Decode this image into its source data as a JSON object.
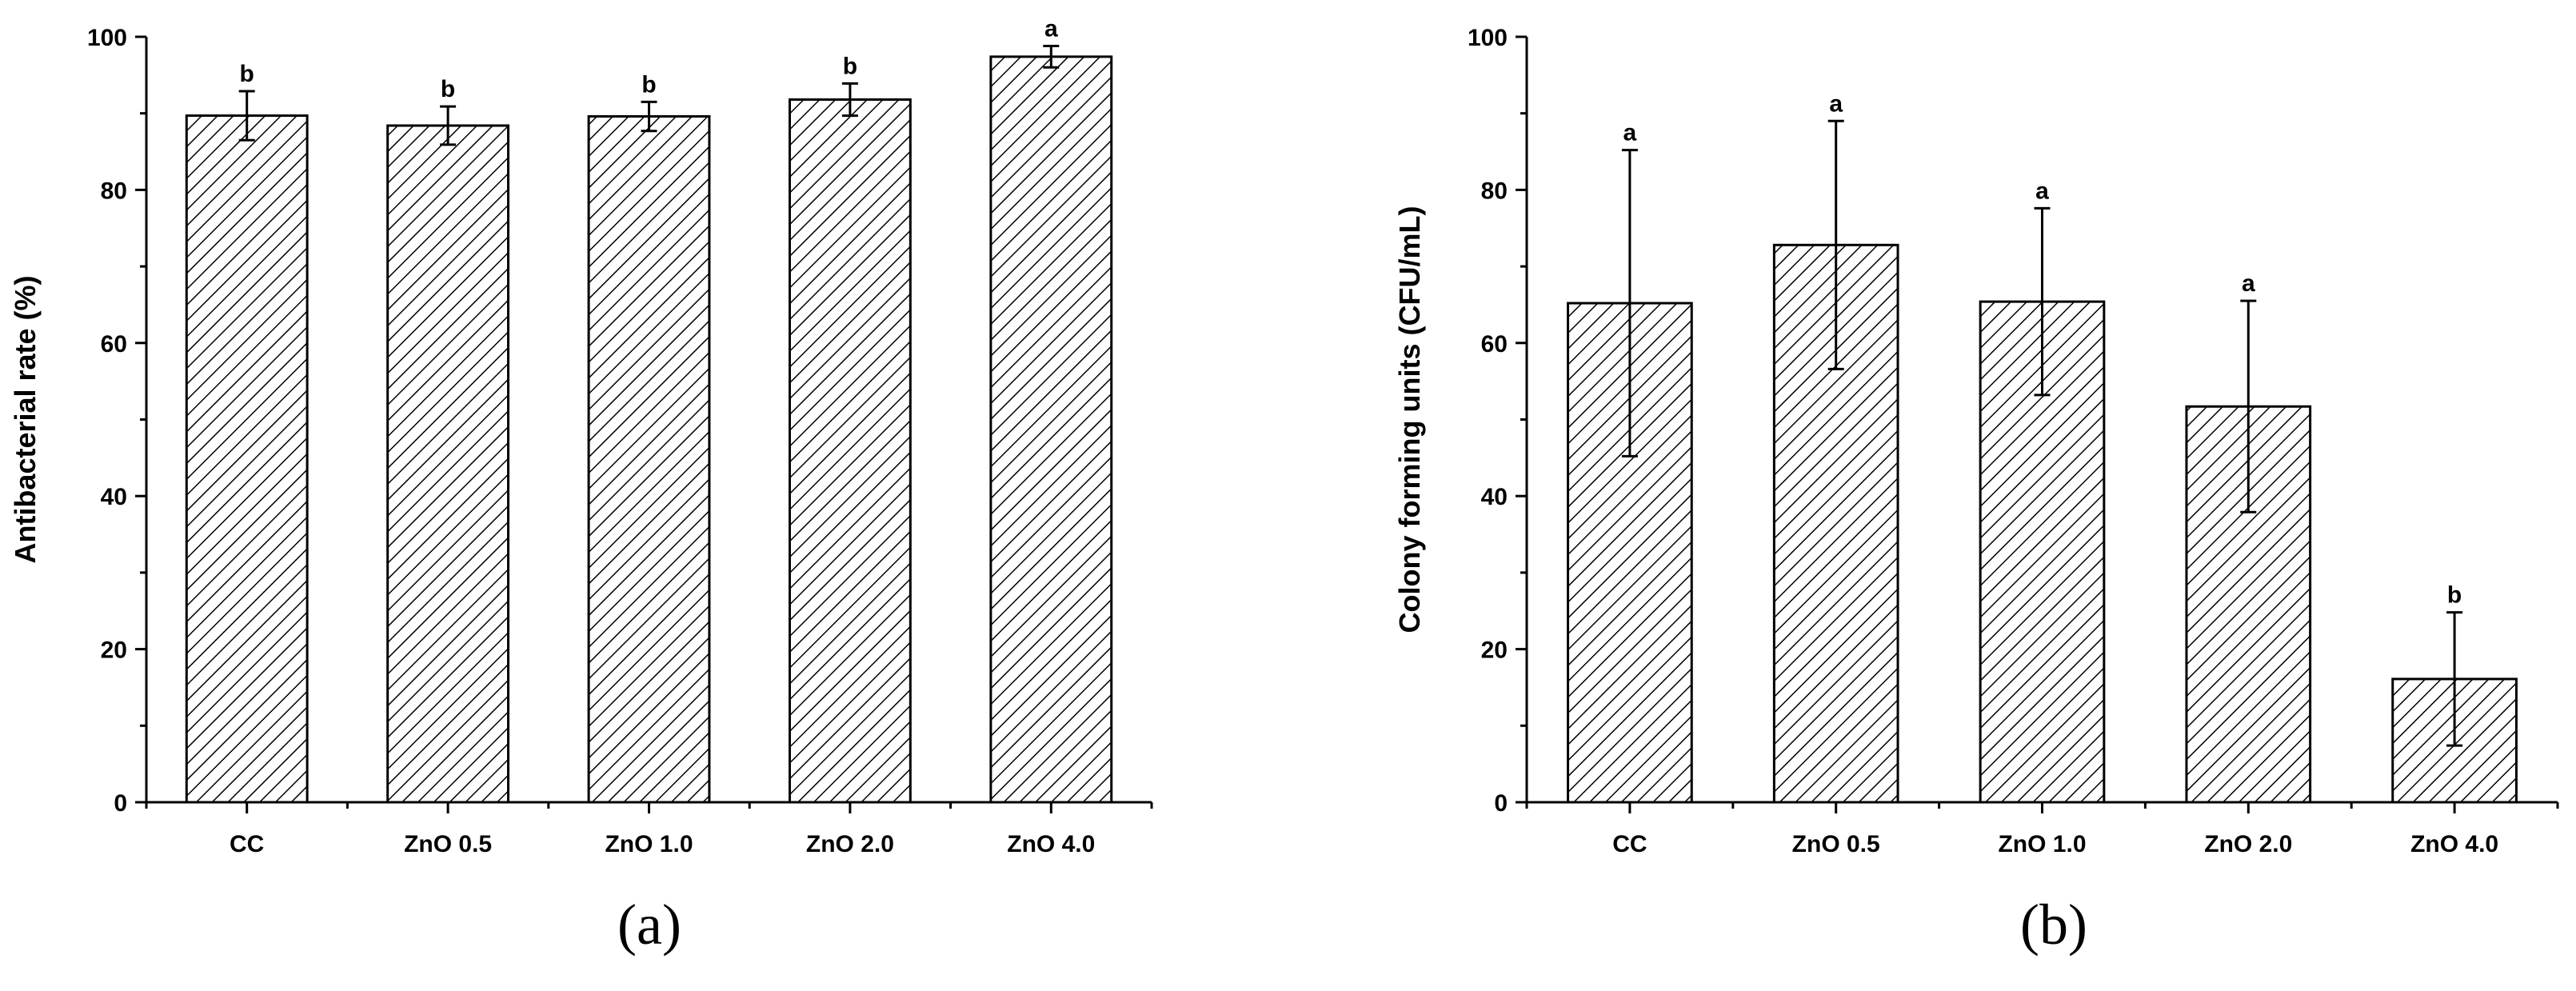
{
  "chart_data": [
    {
      "type": "bar",
      "panel_label": "(a)",
      "ylabel": "Antibacterial rate (%)",
      "xlabel": "",
      "ylim": [
        0,
        100
      ],
      "yticks": [
        0,
        20,
        40,
        60,
        80,
        100
      ],
      "categories": [
        "CC",
        "ZnO 0.5",
        "ZnO 1.0",
        "ZnO 2.0",
        "ZnO 4.0"
      ],
      "values": [
        89.7,
        88.4,
        89.6,
        91.8,
        97.4
      ],
      "errors": [
        3.2,
        2.5,
        1.9,
        2.1,
        1.4
      ],
      "significance": [
        "b",
        "b",
        "b",
        "b",
        "a"
      ],
      "fill_pattern": "diagonal-hatch"
    },
    {
      "type": "bar",
      "panel_label": "(b)",
      "ylabel": "Colony forming units (CFU/mL)",
      "xlabel": "",
      "ylim": [
        0,
        100
      ],
      "yticks": [
        0,
        20,
        40,
        60,
        80,
        100
      ],
      "categories": [
        "CC",
        "ZnO 0.5",
        "ZnO 1.0",
        "ZnO 2.0",
        "ZnO 4.0"
      ],
      "values": [
        65.2,
        72.8,
        65.4,
        51.7,
        16.1
      ],
      "errors": [
        20.0,
        16.2,
        12.2,
        13.8,
        8.7
      ],
      "significance": [
        "a",
        "a",
        "a",
        "a",
        "b"
      ],
      "fill_pattern": "diagonal-hatch"
    }
  ]
}
